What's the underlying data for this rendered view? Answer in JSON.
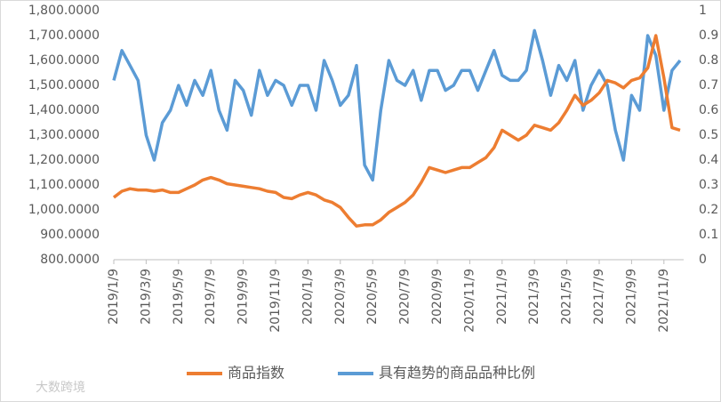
{
  "chart_data": {
    "type": "line",
    "categories": [
      "2019/1/9",
      null,
      null,
      null,
      "2019/3/9",
      null,
      null,
      null,
      "2019/5/9",
      null,
      null,
      null,
      "2019/7/9",
      null,
      null,
      null,
      "2019/9/9",
      null,
      null,
      null,
      "2019/11/9",
      null,
      null,
      null,
      "2020/1/9",
      null,
      null,
      null,
      "2020/3/9",
      null,
      null,
      null,
      "2020/5/9",
      null,
      null,
      null,
      "2020/7/9",
      null,
      null,
      null,
      "2020/9/9",
      null,
      null,
      null,
      "2020/11/9",
      null,
      null,
      null,
      "2021/1/9",
      null,
      null,
      null,
      "2021/3/9",
      null,
      null,
      null,
      "2021/5/9",
      null,
      null,
      null,
      "2021/7/9",
      null,
      null,
      null,
      "2021/9/9",
      null,
      null,
      null,
      "2021/11/9",
      null,
      null
    ],
    "series": [
      {
        "name": "商品指数",
        "color": "#ED7D31",
        "axis": "y",
        "values": [
          1050,
          1075,
          1085,
          1080,
          1080,
          1075,
          1080,
          1070,
          1070,
          1085,
          1100,
          1120,
          1130,
          1120,
          1105,
          1100,
          1095,
          1090,
          1085,
          1075,
          1070,
          1050,
          1045,
          1060,
          1070,
          1060,
          1040,
          1030,
          1010,
          970,
          935,
          940,
          940,
          960,
          990,
          1010,
          1030,
          1060,
          1110,
          1170,
          1160,
          1150,
          1160,
          1170,
          1170,
          1190,
          1210,
          1250,
          1320,
          1300,
          1280,
          1300,
          1340,
          1330,
          1320,
          1350,
          1400,
          1460,
          1420,
          1440,
          1470,
          1520,
          1510,
          1490,
          1520,
          1530,
          1570,
          1700,
          1530,
          1330,
          1320
        ]
      },
      {
        "name": "具有趋势的商品品种比例",
        "color": "#5B9BD5",
        "axis": "y2",
        "values": [
          0.72,
          0.84,
          0.78,
          0.72,
          0.5,
          0.4,
          0.55,
          0.6,
          0.7,
          0.62,
          0.72,
          0.66,
          0.76,
          0.6,
          0.52,
          0.72,
          0.68,
          0.58,
          0.76,
          0.66,
          0.72,
          0.7,
          0.62,
          0.7,
          0.7,
          0.6,
          0.8,
          0.72,
          0.62,
          0.66,
          0.78,
          0.38,
          0.32,
          0.6,
          0.8,
          0.72,
          0.7,
          0.76,
          0.64,
          0.76,
          0.76,
          0.68,
          0.7,
          0.76,
          0.76,
          0.68,
          0.76,
          0.84,
          0.74,
          0.72,
          0.72,
          0.76,
          0.92,
          0.8,
          0.66,
          0.78,
          0.72,
          0.8,
          0.6,
          0.7,
          0.76,
          0.7,
          0.52,
          0.4,
          0.66,
          0.6,
          0.9,
          0.82,
          0.6,
          0.76,
          0.8
        ]
      }
    ],
    "ylim": [
      800,
      1800
    ],
    "yticks": [
      {
        "value": 800,
        "label": "800.0000"
      },
      {
        "value": 900,
        "label": "900.0000"
      },
      {
        "value": 1000,
        "label": "1,000.0000"
      },
      {
        "value": 1100,
        "label": "1,100.0000"
      },
      {
        "value": 1200,
        "label": "1,200.0000"
      },
      {
        "value": 1300,
        "label": "1,300.0000"
      },
      {
        "value": 1400,
        "label": "1,400.0000"
      },
      {
        "value": 1500,
        "label": "1,500.0000"
      },
      {
        "value": 1600,
        "label": "1,600.0000"
      },
      {
        "value": 1700,
        "label": "1,700.0000"
      },
      {
        "value": 1800,
        "label": "1,800.0000"
      }
    ],
    "y2lim": [
      0,
      1
    ],
    "y2ticks": [
      0,
      0.1,
      0.2,
      0.3,
      0.4,
      0.5,
      0.6,
      0.7,
      0.8,
      0.9,
      1
    ],
    "grid": false,
    "legend": "bottom",
    "watermark": "大数跨境"
  }
}
